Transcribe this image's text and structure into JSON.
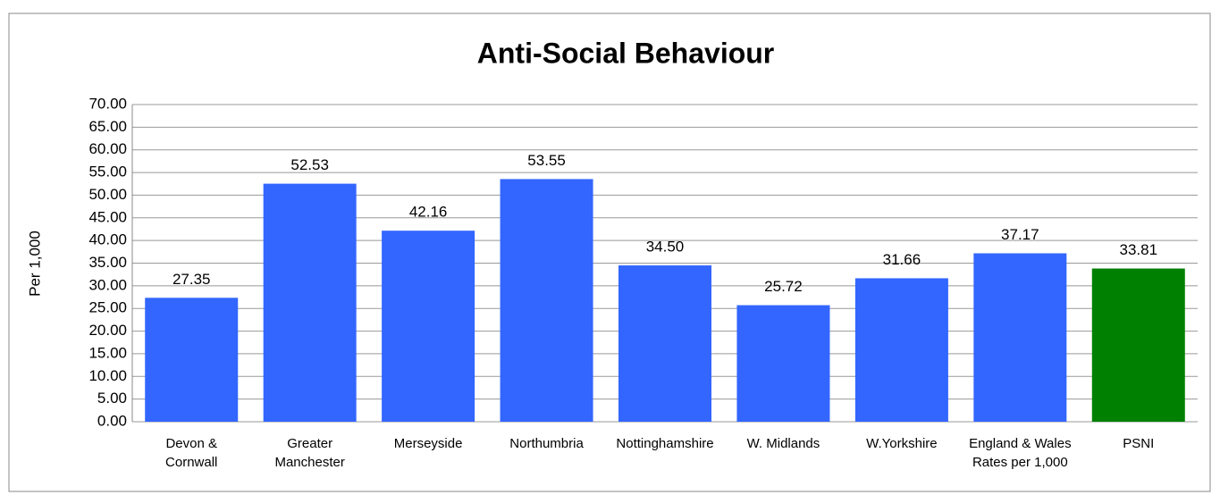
{
  "chart_data": {
    "type": "bar",
    "title": "Anti-Social Behaviour",
    "y_label": "Per 1,000",
    "categories": [
      "Devon &\nCornwall",
      "Greater\nManchester",
      "Merseyside",
      "Northumbria",
      "Nottinghamshire",
      "W. Midlands",
      "W.Yorkshire",
      "England & Wales\nRates per 1,000",
      "PSNI"
    ],
    "values": [
      27.35,
      52.53,
      42.16,
      53.55,
      34.5,
      25.72,
      31.66,
      37.17,
      33.81
    ],
    "value_labels": [
      "27.35",
      "52.53",
      "42.16",
      "53.55",
      "34.50",
      "25.72",
      "31.66",
      "37.17",
      "33.81"
    ],
    "colors": [
      "#3366ff",
      "#3366ff",
      "#3366ff",
      "#3366ff",
      "#3366ff",
      "#3366ff",
      "#3366ff",
      "#3366ff",
      "#008000"
    ],
    "ylim": [
      0,
      70
    ],
    "yticks": [
      {
        "value": 0,
        "label": "0.00"
      },
      {
        "value": 5,
        "label": "5.00"
      },
      {
        "value": 10,
        "label": "10.00"
      },
      {
        "value": 15,
        "label": "15.00"
      },
      {
        "value": 20,
        "label": "20.00"
      },
      {
        "value": 25,
        "label": "25.00"
      },
      {
        "value": 30,
        "label": "30.00"
      },
      {
        "value": 35,
        "label": "35.00"
      },
      {
        "value": 40,
        "label": "40.00"
      },
      {
        "value": 45,
        "label": "45.00"
      },
      {
        "value": 50,
        "label": "50.00"
      },
      {
        "value": 55,
        "label": "55.00"
      },
      {
        "value": 60,
        "label": "60.00"
      },
      {
        "value": 65,
        "label": "65.00"
      },
      {
        "value": 70,
        "label": "70.00"
      }
    ],
    "grid": true
  }
}
